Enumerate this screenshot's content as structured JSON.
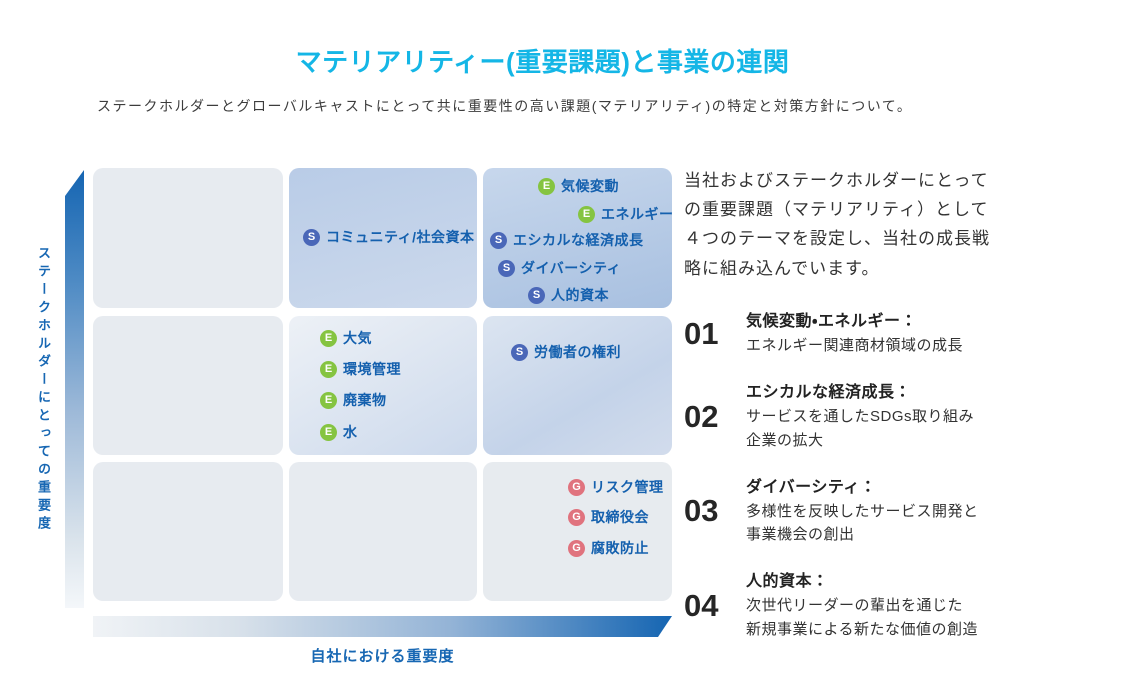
{
  "page": {
    "title": "マテリアリティー(重要課題)と事業の連関",
    "subtitle": "ステークホルダーとグローバルキャストにとって共に重要性の高い課題(マテリアリティ)の特定と対策方針について。"
  },
  "matrix": {
    "y_axis_label": "ステークホルダーにとっての重要度",
    "x_axis_label": "自社における重要度",
    "cells": {
      "top_middle": {
        "items": [
          {
            "badge": "S",
            "label": "コミュニティ/社会資本"
          }
        ]
      },
      "top_right": {
        "items": [
          {
            "badge": "E",
            "label": "気候変動"
          },
          {
            "badge": "E",
            "label": "エネルギー"
          },
          {
            "badge": "S",
            "label": "エシカルな経済成長"
          },
          {
            "badge": "S",
            "label": "ダイバーシティ"
          },
          {
            "badge": "S",
            "label": "人的資本"
          }
        ]
      },
      "mid_center": {
        "items": [
          {
            "badge": "E",
            "label": "大気"
          },
          {
            "badge": "E",
            "label": "環境管理"
          },
          {
            "badge": "E",
            "label": "廃棄物"
          },
          {
            "badge": "E",
            "label": "水"
          }
        ]
      },
      "mid_right": {
        "items": [
          {
            "badge": "S",
            "label": "労働者の権利"
          }
        ]
      },
      "bottom_right": {
        "items": [
          {
            "badge": "G",
            "label": "リスク管理"
          },
          {
            "badge": "G",
            "label": "取締役会"
          },
          {
            "badge": "G",
            "label": "腐敗防止"
          }
        ]
      }
    }
  },
  "panel": {
    "intro": "当社およびステークホルダーにとって\nの重要課題（マテリアリティ）として\n４つのテーマを設定し、当社の成長戦\n略に組み込んでいます。",
    "items": [
      {
        "number": "01",
        "title": "気候変動・エネルギー：",
        "desc": "エネルギー関連商材領域の成長"
      },
      {
        "number": "02",
        "title": "エシカルな経済成長：",
        "desc": "サービスを通したSDGs取り組み\n企業の拡大"
      },
      {
        "number": "03",
        "title": "ダイバーシティ：",
        "desc": "多様性を反映したサービス開発と\n事業機会の創出"
      },
      {
        "number": "04",
        "title": "人的資本：",
        "desc": "次世代リーダーの輩出を通じた\n新規事業による新たな価値の創造"
      }
    ]
  },
  "colors": {
    "accent": "#14b6e6",
    "axis_blue": "#1767b3",
    "label_blue": "#1460ae",
    "arrow_dark": "#1565b2",
    "badge_e": "#85c441",
    "badge_s": "#4a67b8",
    "badge_g": "#e0737e",
    "cell_gray": "#e7ebf0",
    "text_dark": "#333333"
  }
}
